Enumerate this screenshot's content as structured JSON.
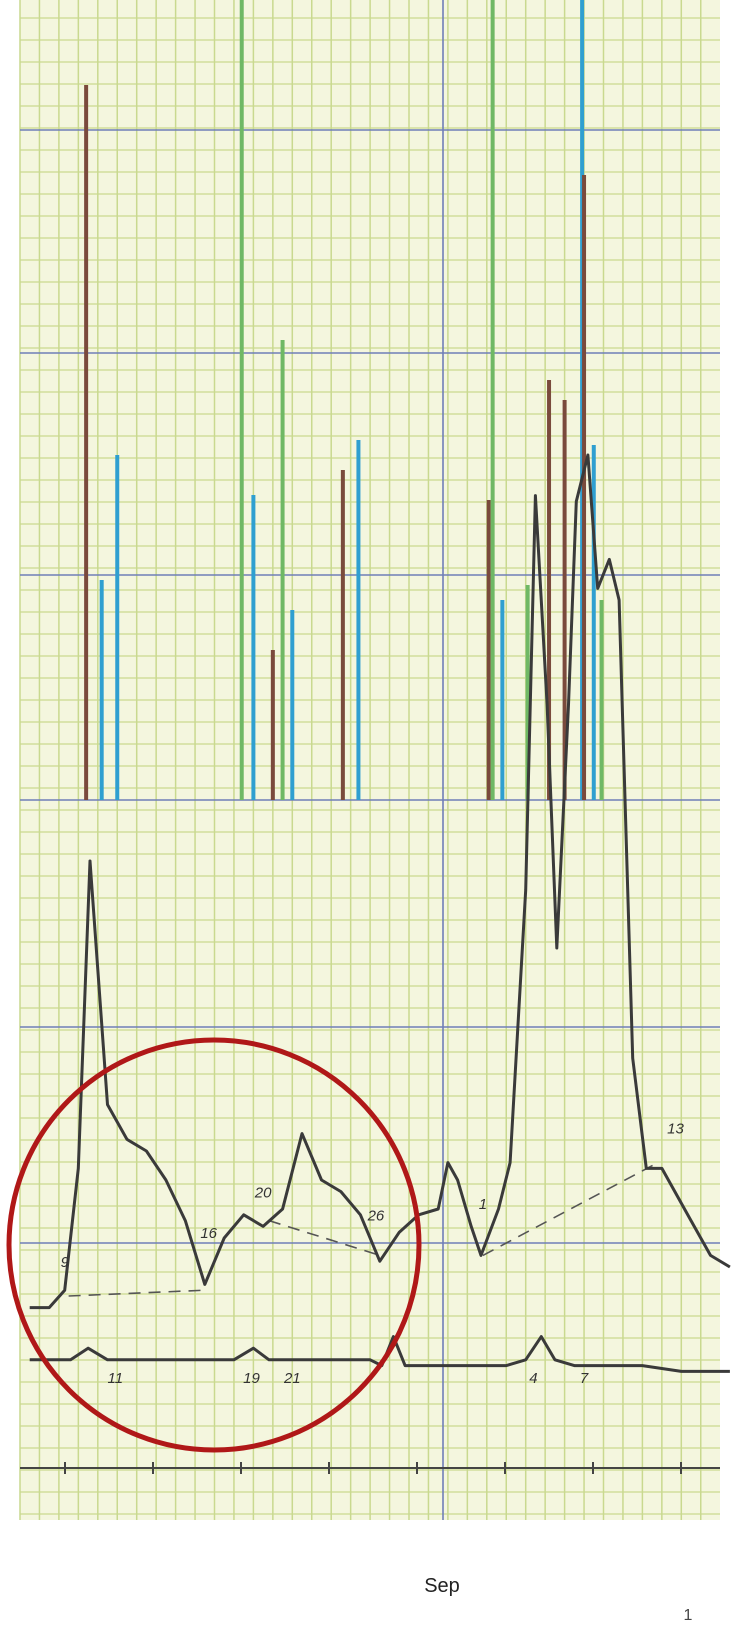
{
  "chart_data": {
    "type": "line",
    "title": "",
    "xlabel": "Sep",
    "ylabel": "",
    "grid": true,
    "legend": "none",
    "colors": {
      "paper": "#f4f6de",
      "grid_minor": "#c9d98f",
      "grid_major": "#6f7fb7",
      "ink": "#3a3a3a",
      "brown": "#7a4a3c",
      "green": "#6fb865",
      "blue": "#2f9fd0",
      "circle": "#b01818"
    },
    "bars": [
      {
        "x": 3.4,
        "h": 1.43,
        "color": "brown"
      },
      {
        "x": 4.2,
        "h": 0.44,
        "color": "blue"
      },
      {
        "x": 5.0,
        "h": 0.69,
        "color": "blue"
      },
      {
        "x": 11.4,
        "h": 1.81,
        "color": "green"
      },
      {
        "x": 12.0,
        "h": 0.61,
        "color": "blue"
      },
      {
        "x": 13.0,
        "h": 0.3,
        "color": "brown"
      },
      {
        "x": 13.5,
        "h": 0.92,
        "color": "green"
      },
      {
        "x": 14.0,
        "h": 0.38,
        "color": "blue"
      },
      {
        "x": 16.6,
        "h": 0.66,
        "color": "brown"
      },
      {
        "x": 17.4,
        "h": 0.72,
        "color": "blue"
      },
      {
        "x": 24.1,
        "h": 0.6,
        "color": "brown"
      },
      {
        "x": 24.3,
        "h": 1.81,
        "color": "green"
      },
      {
        "x": 24.8,
        "h": 0.4,
        "color": "blue"
      },
      {
        "x": 26.1,
        "h": 0.43,
        "color": "green"
      },
      {
        "x": 27.2,
        "h": 0.84,
        "color": "brown"
      },
      {
        "x": 28.0,
        "h": 0.8,
        "color": "brown"
      },
      {
        "x": 28.9,
        "h": 1.81,
        "color": "blue"
      },
      {
        "x": 29.0,
        "h": 1.25,
        "color": "brown"
      },
      {
        "x": 29.5,
        "h": 0.71,
        "color": "blue"
      },
      {
        "x": 29.9,
        "h": 0.4,
        "color": "green"
      }
    ],
    "upper_line": [
      [
        0.5,
        -0.12
      ],
      [
        1.5,
        -0.12
      ],
      [
        2.3,
        -0.09
      ],
      [
        3.0,
        0.12
      ],
      [
        3.6,
        0.65
      ],
      [
        4.5,
        0.23
      ],
      [
        5.5,
        0.17
      ],
      [
        6.5,
        0.15
      ],
      [
        7.5,
        0.1
      ],
      [
        8.5,
        0.03
      ],
      [
        9.5,
        -0.08
      ],
      [
        10.5,
        0.0
      ],
      [
        11.5,
        0.04
      ],
      [
        12.5,
        0.02
      ],
      [
        13.5,
        0.05
      ],
      [
        14.5,
        0.18
      ],
      [
        15.5,
        0.1
      ],
      [
        16.5,
        0.08
      ],
      [
        17.5,
        0.04
      ],
      [
        18.5,
        -0.04
      ],
      [
        19.5,
        0.01
      ],
      [
        20.5,
        0.04
      ],
      [
        21.5,
        0.05
      ],
      [
        22.0,
        0.13
      ],
      [
        22.5,
        0.1
      ],
      [
        23.2,
        0.02
      ],
      [
        23.7,
        -0.03
      ],
      [
        24.6,
        0.05
      ],
      [
        25.2,
        0.13
      ],
      [
        26.0,
        0.6
      ],
      [
        26.5,
        1.28
      ],
      [
        27.1,
        0.92
      ],
      [
        27.6,
        0.5
      ],
      [
        28.2,
        0.92
      ],
      [
        28.6,
        1.27
      ],
      [
        29.2,
        1.35
      ],
      [
        29.7,
        1.12
      ],
      [
        30.3,
        1.17
      ],
      [
        30.8,
        1.1
      ],
      [
        31.5,
        0.31
      ],
      [
        32.2,
        0.12
      ],
      [
        33.0,
        0.12
      ],
      [
        34.5,
        0.03
      ],
      [
        35.5,
        -0.03
      ],
      [
        36.5,
        -0.05
      ]
    ],
    "lower_line": [
      [
        0.5,
        -0.21
      ],
      [
        2.6,
        -0.21
      ],
      [
        3.5,
        -0.19
      ],
      [
        4.5,
        -0.21
      ],
      [
        6.0,
        -0.21
      ],
      [
        9.0,
        -0.21
      ],
      [
        11.0,
        -0.21
      ],
      [
        12.0,
        -0.19
      ],
      [
        12.8,
        -0.21
      ],
      [
        14.0,
        -0.21
      ],
      [
        17.0,
        -0.21
      ],
      [
        18.0,
        -0.21
      ],
      [
        18.6,
        -0.22
      ],
      [
        19.2,
        -0.17
      ],
      [
        19.8,
        -0.22
      ],
      [
        21.0,
        -0.22
      ],
      [
        23.0,
        -0.22
      ],
      [
        25.0,
        -0.22
      ],
      [
        26.0,
        -0.21
      ],
      [
        26.8,
        -0.17
      ],
      [
        27.5,
        -0.21
      ],
      [
        28.5,
        -0.22
      ],
      [
        30.0,
        -0.22
      ],
      [
        32.0,
        -0.22
      ],
      [
        34.0,
        -0.23
      ],
      [
        36.5,
        -0.23
      ]
    ],
    "dashed_segments": [
      [
        [
          2.5,
          -0.1
        ],
        [
          9.5,
          -0.09
        ]
      ],
      [
        [
          12.8,
          0.03
        ],
        [
          18.5,
          -0.03
        ]
      ],
      [
        [
          23.8,
          -0.03
        ],
        [
          32.8,
          0.13
        ]
      ]
    ],
    "annotations": [
      {
        "text": "9",
        "x": 2.3,
        "y": -0.05
      },
      {
        "text": "16",
        "x": 9.7,
        "y": 0.0
      },
      {
        "text": "20",
        "x": 12.5,
        "y": 0.07
      },
      {
        "text": "26",
        "x": 18.3,
        "y": 0.03
      },
      {
        "text": "1",
        "x": 23.8,
        "y": 0.05
      },
      {
        "text": "13",
        "x": 33.7,
        "y": 0.18
      },
      {
        "text": "11",
        "x": 4.9,
        "y": -0.25
      },
      {
        "text": "19",
        "x": 11.9,
        "y": -0.25
      },
      {
        "text": "21",
        "x": 14.0,
        "y": -0.25
      },
      {
        "text": "4",
        "x": 26.4,
        "y": -0.25
      },
      {
        "text": "7",
        "x": 29.0,
        "y": -0.25
      }
    ],
    "page_number": "1"
  }
}
